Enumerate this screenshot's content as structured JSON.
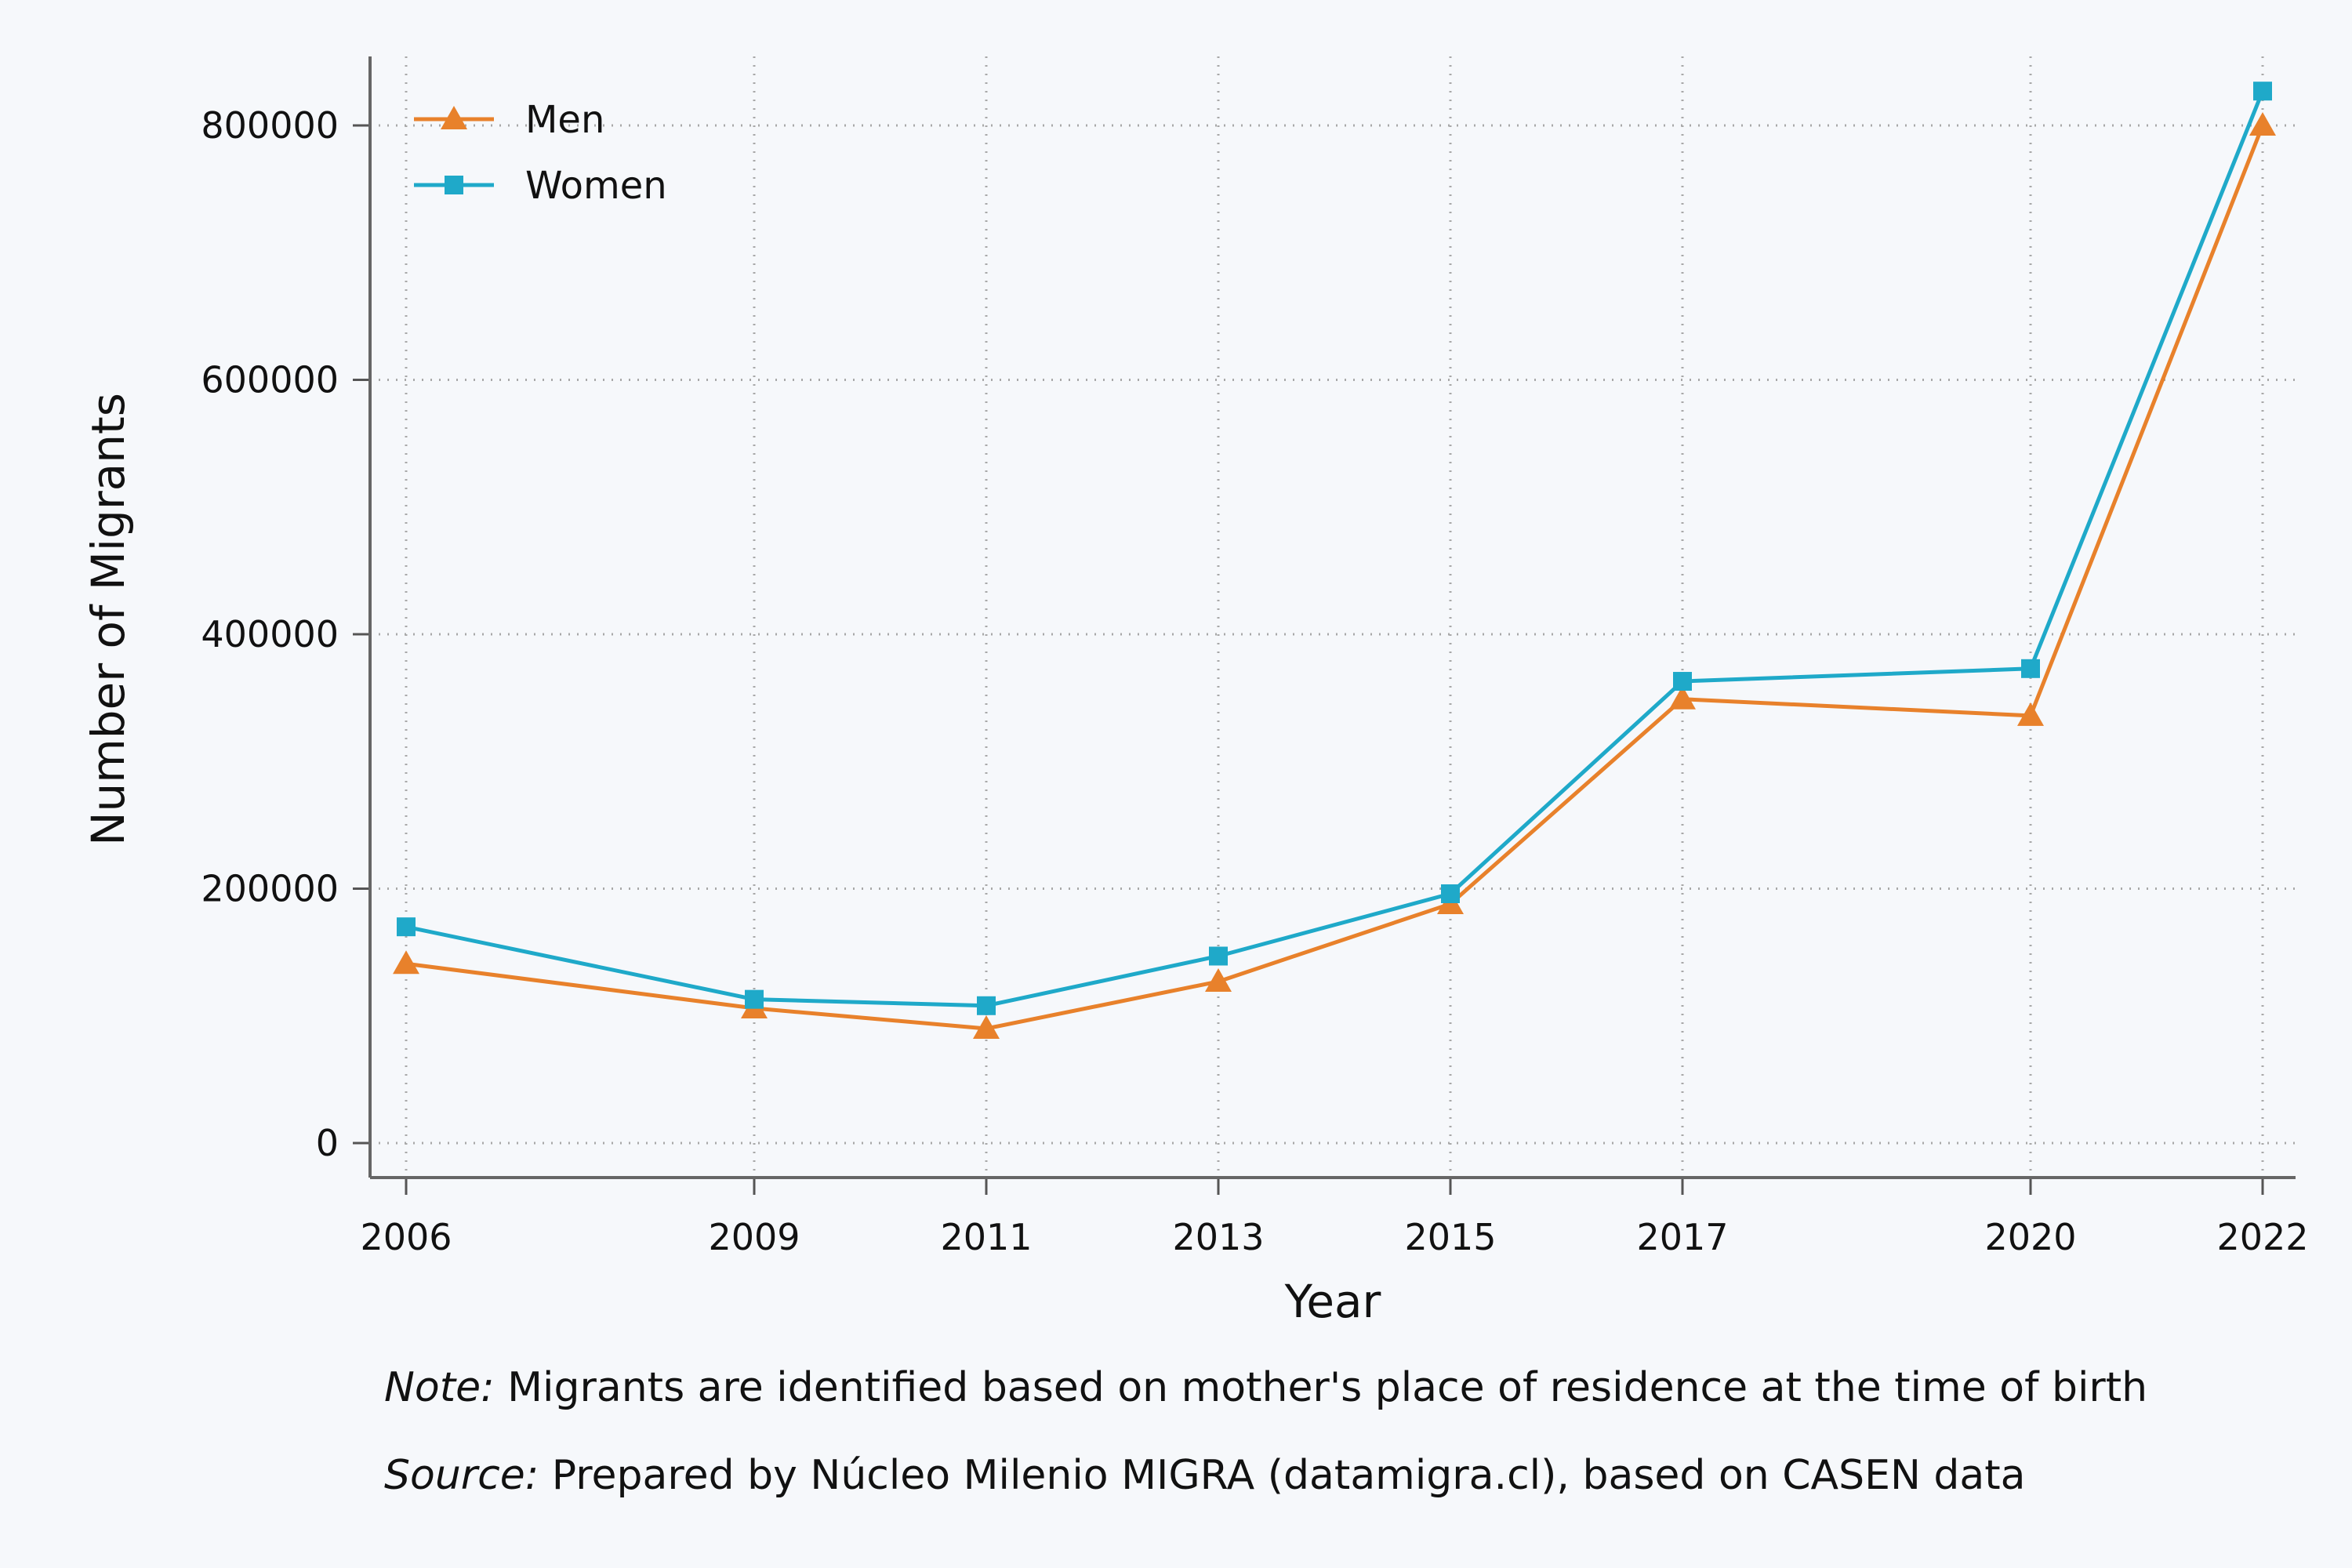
{
  "chart_data": {
    "type": "line",
    "x": [
      2006,
      2009,
      2011,
      2013,
      2015,
      2017,
      2020,
      2022
    ],
    "series": [
      {
        "name": "Men",
        "color": "#e8812b",
        "marker": "triangle",
        "values": [
          141000,
          106000,
          90000,
          127000,
          188000,
          349000,
          336000,
          800000
        ]
      },
      {
        "name": "Women",
        "color": "#1fa9c9",
        "marker": "square",
        "values": [
          170000,
          113000,
          108000,
          147000,
          196000,
          363000,
          373000,
          827000
        ]
      }
    ],
    "xlabel": "Year",
    "ylabel": "Number of Migrants",
    "xticks": [
      "2006",
      "2009",
      "2011",
      "2013",
      "2015",
      "2017",
      "2020",
      "2022"
    ],
    "yticks": [
      "0",
      "200000",
      "400000",
      "600000",
      "800000"
    ],
    "ylim": [
      0,
      800000
    ],
    "grid": true,
    "legend_position": "top-left"
  },
  "notes": {
    "note_lead": "Note:",
    "note_text": " Migrants are identified based on mother's place of residence at the time of birth",
    "source_lead": "Source:",
    "source_text": " Prepared by Núcleo Milenio MIGRA (datamigra.cl), based on CASEN data"
  }
}
